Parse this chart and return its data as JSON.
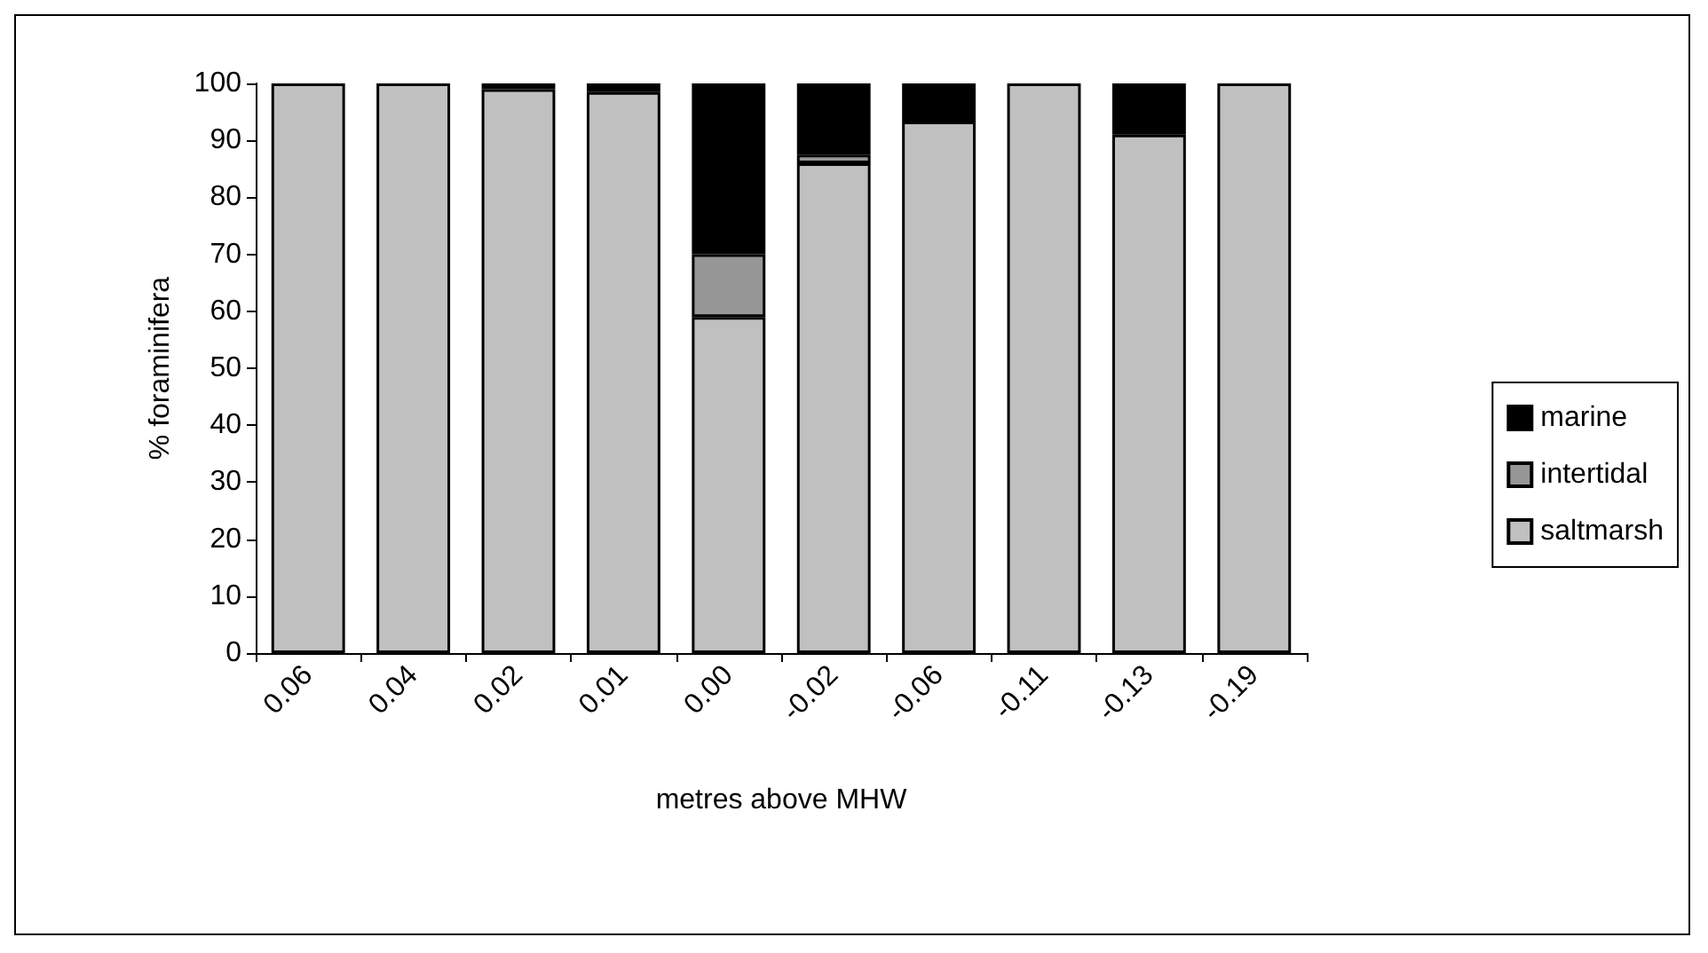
{
  "chart_data": {
    "type": "bar",
    "stacked": true,
    "xlabel": "metres above MHW",
    "ylabel": "% foraminifera",
    "categories": [
      "0.06",
      "0.04",
      "0.02",
      "0.01",
      "0.00",
      "-0.02",
      "-0.06",
      "-0.11",
      "-0.13",
      "-0.19"
    ],
    "series": [
      {
        "name": "saltmarsh",
        "color": "#c0c0c0",
        "values": [
          100,
          100,
          99,
          98.5,
          59,
          86,
          93.3,
          100,
          91,
          100
        ]
      },
      {
        "name": "intertidal",
        "color": "#969696",
        "values": [
          0,
          0,
          0,
          0,
          11,
          1.5,
          0,
          0,
          0,
          0
        ]
      },
      {
        "name": "marine",
        "color": "#000000",
        "values": [
          0,
          0,
          1,
          1.5,
          30,
          12.5,
          6.7,
          0,
          9,
          0
        ]
      }
    ],
    "ylim": [
      0,
      100
    ],
    "yticks": [
      0,
      10,
      20,
      30,
      40,
      50,
      60,
      70,
      80,
      90,
      100
    ],
    "grid": false,
    "legend": "right"
  }
}
